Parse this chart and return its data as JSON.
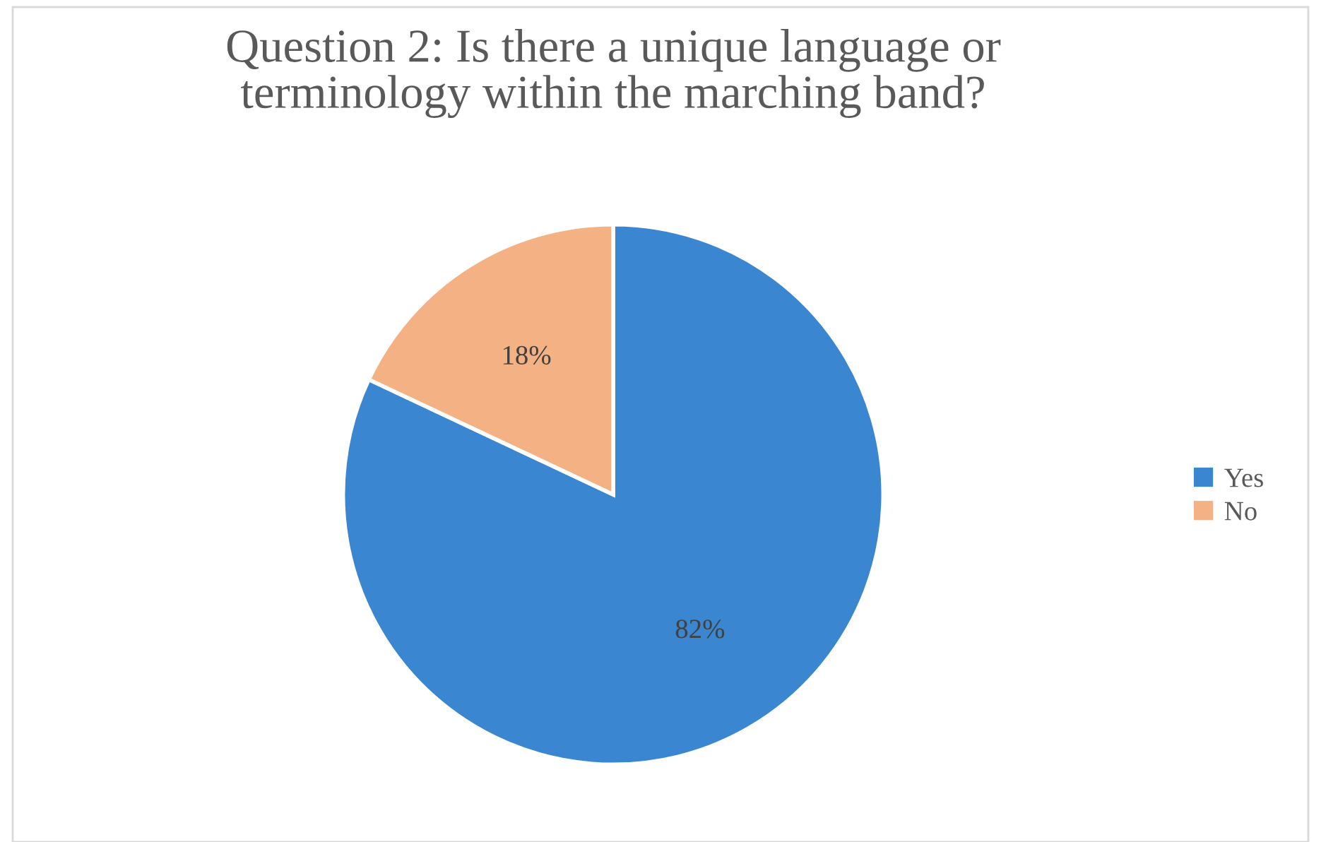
{
  "chart_data": {
    "type": "pie",
    "title": "Question 2: Is there a unique language or\nterminology within the marching band?",
    "categories": [
      "Yes",
      "No"
    ],
    "values": [
      82,
      18
    ],
    "colors": [
      "#3a86d0",
      "#f4b183"
    ],
    "value_labels": [
      "82%",
      "18%"
    ],
    "legend": "right"
  }
}
